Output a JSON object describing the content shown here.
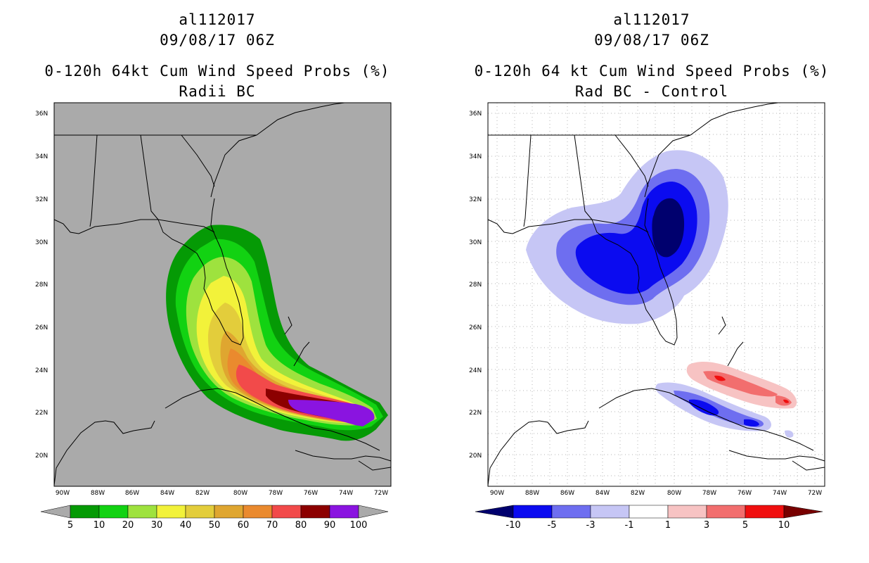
{
  "left_panel": {
    "storm_id": "al112017",
    "datetime": "09/08/17 06Z",
    "product": "0-120h 64kt Cum Wind Speed Probs (%)",
    "subtitle": "Radii BC",
    "legend_values": [
      "5",
      "10",
      "20",
      "30",
      "40",
      "50",
      "60",
      "70",
      "80",
      "90",
      "100"
    ],
    "legend_colors": [
      "#059a05",
      "#12d212",
      "#9ee23e",
      "#f2f23a",
      "#e3cd3b",
      "#dfa630",
      "#ea8a2e",
      "#f24a4a",
      "#8c0000",
      "#8a14e0"
    ]
  },
  "right_panel": {
    "storm_id": "al112017",
    "datetime": "09/08/17 06Z",
    "product": "0-120h 64 kt Cum Wind Speed Probs (%)",
    "subtitle": "Rad BC - Control",
    "legend_values": [
      "-10",
      "-5",
      "-3",
      "-1",
      "1",
      "3",
      "5",
      "10"
    ],
    "legend_colors": [
      "#00006e",
      "#0b0bf0",
      "#6e6ef0",
      "#c6c6f5",
      "#ffffff",
      "#f7c3c3",
      "#f26e6e",
      "#f00f0f",
      "#780000"
    ]
  },
  "map_axes": {
    "lat_labels": [
      "36N",
      "34N",
      "32N",
      "30N",
      "28N",
      "26N",
      "24N",
      "22N",
      "20N"
    ],
    "lon_labels": [
      "90W",
      "88W",
      "86W",
      "84W",
      "82W",
      "80W",
      "78W",
      "76W",
      "74W",
      "72W"
    ]
  },
  "colors": {
    "ocean_left": "#aaaaaa",
    "grid": "#b4b4b4",
    "coast": "#000000"
  }
}
